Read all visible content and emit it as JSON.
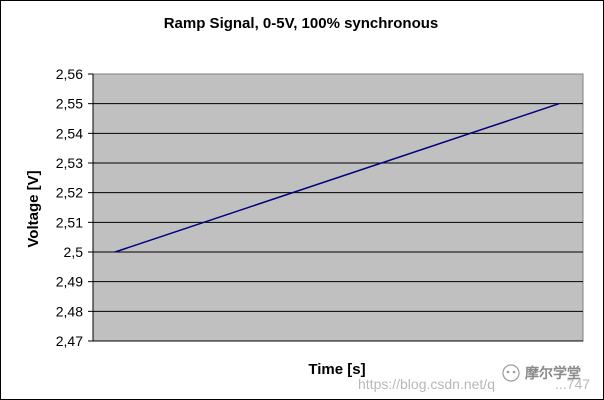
{
  "chart_data": {
    "type": "line",
    "title": "Ramp Signal, 0-5V, 100% synchronous",
    "xlabel": "Time [s]",
    "ylabel": "Voltage [V]",
    "ylim": [
      2.47,
      2.56
    ],
    "yticks": [
      "2,47",
      "2,48",
      "2,49",
      "2,5",
      "2,51",
      "2,52",
      "2,53",
      "2,54",
      "2,55",
      "2,56"
    ],
    "grid": true,
    "legend": "none",
    "series": [
      {
        "values": [
          2.5,
          2.55
        ],
        "color": "#000080"
      }
    ],
    "plot_background": "#c0c0c0"
  },
  "watermark": {
    "url": "https://blog.csdn.net/q",
    "brand": "摩尔学堂",
    "tail": "...747"
  }
}
